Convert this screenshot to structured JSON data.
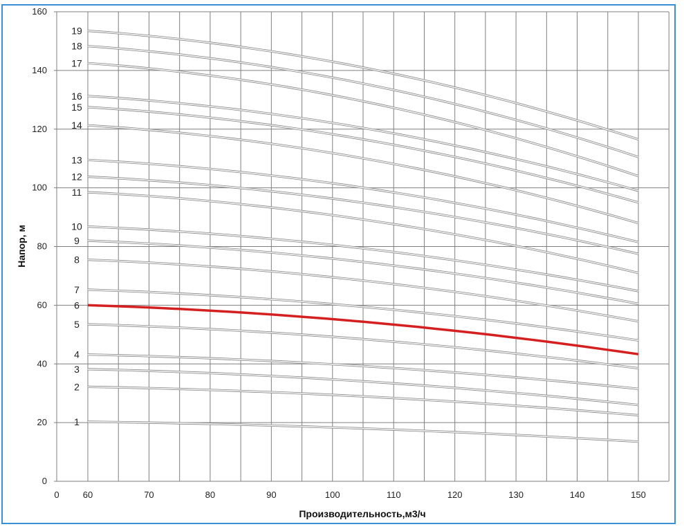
{
  "chart_data": {
    "type": "line",
    "title": "",
    "xlabel": "Производительность,м3/ч",
    "ylabel": "Напор, м",
    "xlim": [
      0,
      150
    ],
    "ylim": [
      0,
      160
    ],
    "x_ticks": [
      "0",
      "60",
      "70",
      "80",
      "90",
      "100",
      "110",
      "120",
      "130",
      "140",
      "150"
    ],
    "y_ticks": [
      "0",
      "20",
      "40",
      "60",
      "80",
      "100",
      "120",
      "140",
      "160"
    ],
    "grid": true,
    "highlight_color": "#d42020",
    "curve_color": "#c8c8c8",
    "x": [
      60,
      150
    ],
    "series": [
      {
        "label": "1",
        "values": [
          20.3,
          13.5
        ]
      },
      {
        "label": "2",
        "values": [
          32.2,
          22.5
        ]
      },
      {
        "label": "3",
        "values": [
          38.2,
          26.0
        ]
      },
      {
        "label": "4",
        "values": [
          43.2,
          31.5
        ]
      },
      {
        "label": "5",
        "values": [
          53.5,
          38.5
        ]
      },
      {
        "label": "6",
        "values": [
          60.0,
          43.3
        ],
        "highlight": true
      },
      {
        "label": "7",
        "values": [
          65.3,
          48.0
        ]
      },
      {
        "label": "8",
        "values": [
          75.5,
          54.5
        ]
      },
      {
        "label": "9",
        "values": [
          82.0,
          60.5
        ]
      },
      {
        "label": "10",
        "values": [
          86.8,
          64.8
        ]
      },
      {
        "label": "11",
        "values": [
          98.5,
          71.0
        ]
      },
      {
        "label": "12",
        "values": [
          103.8,
          77.5
        ]
      },
      {
        "label": "13",
        "values": [
          109.5,
          81.5
        ]
      },
      {
        "label": "14",
        "values": [
          121.3,
          88.0
        ]
      },
      {
        "label": "15",
        "values": [
          127.5,
          95.0
        ]
      },
      {
        "label": "16",
        "values": [
          131.3,
          99.0
        ]
      },
      {
        "label": "17",
        "values": [
          142.5,
          104.0
        ]
      },
      {
        "label": "18",
        "values": [
          148.3,
          110.5
        ]
      },
      {
        "label": "19",
        "values": [
          153.5,
          116.5
        ]
      }
    ]
  }
}
